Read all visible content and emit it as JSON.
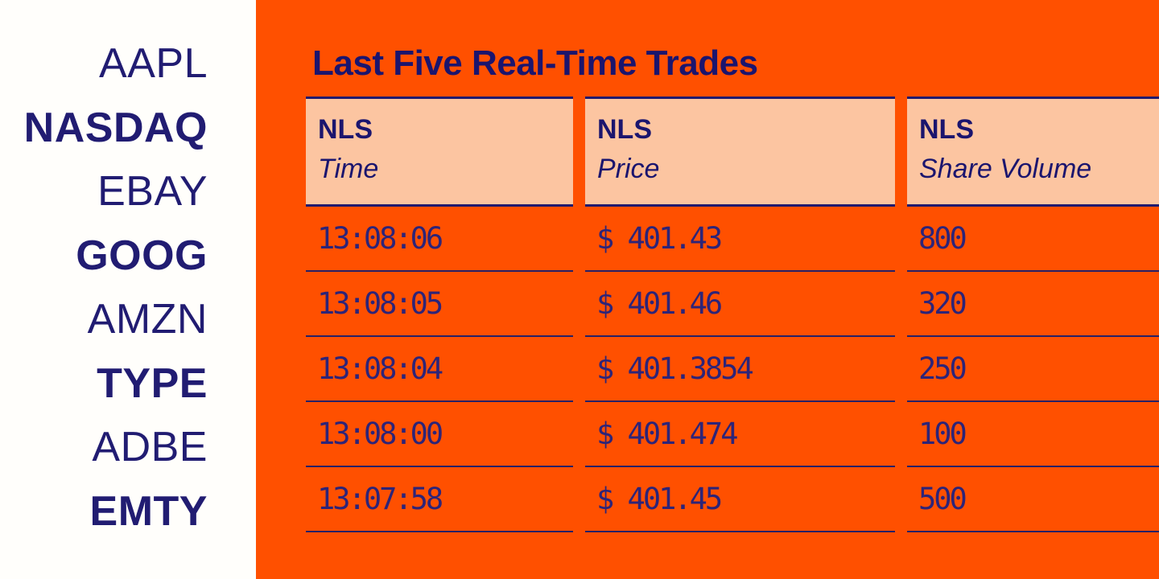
{
  "colors": {
    "orange_background": "#FF5000",
    "peach_header": "#FCC5A1",
    "navy_text": "#1B156E",
    "navy_rule": "#272066",
    "sidebar_background": "#FFFEFB"
  },
  "sidebar": {
    "tickers": [
      {
        "symbol": "AAPL",
        "weight": "light"
      },
      {
        "symbol": "NASDAQ",
        "weight": "bold"
      },
      {
        "symbol": "EBAY",
        "weight": "light"
      },
      {
        "symbol": "GOOG",
        "weight": "bold"
      },
      {
        "symbol": "AMZN",
        "weight": "light"
      },
      {
        "symbol": "TYPE",
        "weight": "bold"
      },
      {
        "symbol": "ADBE",
        "weight": "light"
      },
      {
        "symbol": "EMTY",
        "weight": "bold"
      }
    ]
  },
  "panel": {
    "title": "Last Five Real-Time Trades",
    "table": {
      "headers": [
        {
          "exchange": "NLS",
          "label": "Time"
        },
        {
          "exchange": "NLS",
          "label": "Price"
        },
        {
          "exchange": "NLS",
          "label": "Share Volume"
        }
      ],
      "rows": [
        {
          "time": "13:08:06",
          "price": "$ 401.43",
          "volume": "800"
        },
        {
          "time": "13:08:05",
          "price": "$ 401.46",
          "volume": "320"
        },
        {
          "time": "13:08:04",
          "price": "$ 401.3854",
          "volume": "250"
        },
        {
          "time": "13:08:00",
          "price": "$ 401.474",
          "volume": "100"
        },
        {
          "time": "13:07:58",
          "price": "$ 401.45",
          "volume": "500"
        }
      ]
    }
  }
}
